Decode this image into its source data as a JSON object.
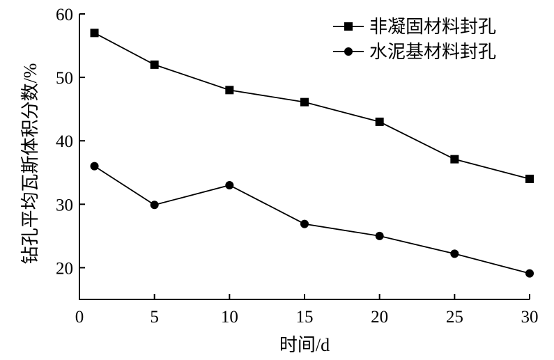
{
  "chart_data": {
    "type": "line",
    "xlabel": "时间/d",
    "ylabel": "钻孔平均瓦斯体积分数/%",
    "xlim": [
      0,
      30
    ],
    "ylim": [
      15,
      60
    ],
    "xticks": [
      0,
      5,
      10,
      15,
      20,
      25,
      30
    ],
    "yticks": [
      20,
      30,
      40,
      50,
      60
    ],
    "x": [
      1,
      5,
      10,
      15,
      20,
      25,
      30
    ],
    "series": [
      {
        "name": "非凝固材料封孔",
        "marker": "square",
        "values": [
          57,
          52,
          48,
          46.1,
          43,
          37.1,
          34
        ]
      },
      {
        "name": "水泥基材料封孔",
        "marker": "circle",
        "values": [
          36,
          29.9,
          33,
          26.9,
          25,
          22.2,
          19.1
        ]
      }
    ],
    "legend_position": "top-right",
    "grid": false,
    "colors": {
      "line": "#000000",
      "marker": "#000000"
    }
  }
}
